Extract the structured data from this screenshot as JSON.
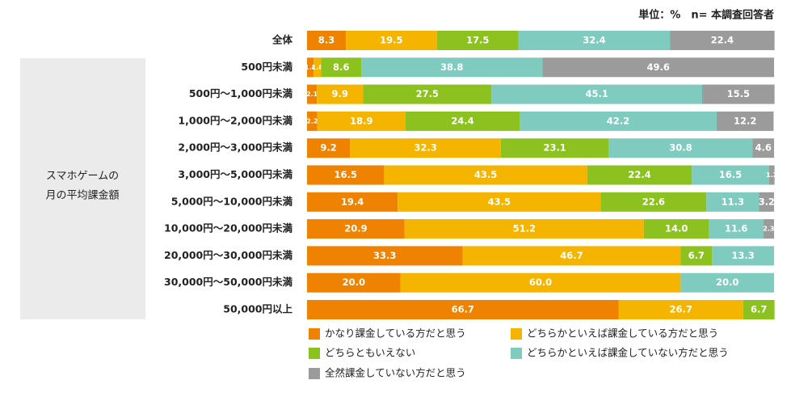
{
  "chart_data": {
    "type": "stacked_barh",
    "note": "単位：%　n= 本調査回答者",
    "y_axis_label": [
      "スマホゲームの",
      "月の平均課金額"
    ],
    "categories": [
      "全体",
      "500円未満",
      "500円～1,000円未満",
      "1,000円～2,000円未満",
      "2,000円～3,000円未満",
      "3,000円～5,000円未満",
      "5,000円～10,000円未満",
      "10,000円～20,000円未満",
      "20,000円～30,000円未満",
      "30,000円～50,000円未満",
      "50,000円以上"
    ],
    "xlim": [
      0,
      100
    ],
    "series": [
      {
        "name": "かなり課金している方だと思う",
        "color": "#ef8200",
        "values": [
          8.3,
          1.4,
          2.1,
          2.2,
          9.2,
          16.5,
          19.4,
          20.9,
          33.3,
          20.0,
          66.7
        ],
        "value_labels": [
          "8.3",
          "1.4",
          "2.1",
          "2.2",
          "9.2",
          "16.5",
          "19.4",
          "20.9",
          "33.3",
          "20.0",
          "66.7"
        ]
      },
      {
        "name": "どちらかといえば課金している方だと思う",
        "color": "#f5b400",
        "values": [
          19.5,
          1.6,
          9.9,
          18.9,
          32.3,
          43.5,
          43.5,
          51.2,
          46.7,
          60.0,
          26.7
        ],
        "value_labels": [
          "19.5",
          "1.6",
          "9.9",
          "18.9",
          "32.3",
          "43.5",
          "43.5",
          "51.2",
          "46.7",
          "60.0",
          "26.7"
        ]
      },
      {
        "name": "どちらともいえない",
        "color": "#8cc21f",
        "values": [
          17.5,
          8.6,
          27.5,
          24.4,
          23.1,
          22.4,
          22.6,
          14.0,
          6.7,
          null,
          6.7
        ],
        "value_labels": [
          "17.5",
          "8.6",
          "27.5",
          "24.4",
          "23.1",
          "22.4",
          "22.6",
          "14.0",
          "6.7",
          null,
          "6.7"
        ]
      },
      {
        "name": "どちらかといえば課金していない方だと思う",
        "color": "#7fcbc0",
        "values": [
          32.4,
          38.8,
          45.1,
          42.2,
          30.8,
          16.5,
          11.3,
          11.6,
          13.3,
          20.0,
          null
        ],
        "value_labels": [
          "32.4",
          "38.8",
          "45.1",
          "42.2",
          "30.8",
          "16.5",
          "11.3",
          "11.6",
          "13.3",
          "20.0",
          null
        ]
      },
      {
        "name": "全然課金していない方だと思う",
        "color": "#9b9b9b",
        "values": [
          22.4,
          49.6,
          15.5,
          12.2,
          4.6,
          1.2,
          3.2,
          2.3,
          null,
          null,
          null
        ],
        "value_labels": [
          "22.4",
          "49.6",
          "15.5",
          "12.2",
          "4.6",
          "1.2",
          "3.2",
          "2.3",
          null,
          null,
          null
        ]
      }
    ]
  }
}
